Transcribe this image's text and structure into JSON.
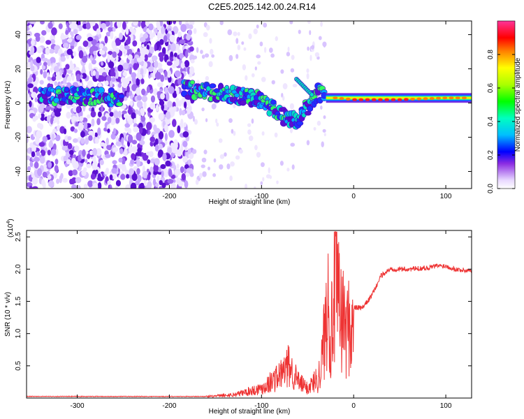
{
  "title": "C2E5.2025.142.00.24.R14",
  "chart_data": [
    {
      "type": "heatmap",
      "xlabel": "Height of straight line (km)",
      "ylabel": "Frequency (Hz)",
      "xlim": [
        -355,
        128
      ],
      "ylim": [
        -50,
        48
      ],
      "x_ticks": [
        -300,
        -200,
        -100,
        0,
        100
      ],
      "y_ticks": [
        -40,
        -20,
        0,
        20,
        40
      ],
      "colorbar": {
        "label": "Normalized spectral amplitude",
        "range": [
          0,
          1
        ],
        "ticks": [
          0.0,
          0.2,
          0.4,
          0.6,
          0.8
        ]
      },
      "ridge": [
        {
          "x": -320,
          "y": 4
        },
        {
          "x": -280,
          "y": 4
        },
        {
          "x": -250,
          "y": 3
        },
        {
          "x": -180,
          "y": 8
        },
        {
          "x": -150,
          "y": 6
        },
        {
          "x": -120,
          "y": 4
        },
        {
          "x": -100,
          "y": 2
        },
        {
          "x": -90,
          "y": -2
        },
        {
          "x": -80,
          "y": -6
        },
        {
          "x": -70,
          "y": -10
        },
        {
          "x": -60,
          "y": -10
        },
        {
          "x": -40,
          "y": 6
        },
        {
          "x": -20,
          "y": 3
        },
        {
          "x": 0,
          "y": 2
        },
        {
          "x": 50,
          "y": 2
        },
        {
          "x": 100,
          "y": 3
        },
        {
          "x": 128,
          "y": 3
        }
      ],
      "grid": false
    },
    {
      "type": "line",
      "xlabel": "Height of straight line (km)",
      "ylabel": "SNR (10 * v/v)",
      "multiplier": "(x10",
      "multiplier_exp": "4",
      "xlim": [
        -355,
        128
      ],
      "ylim": [
        0,
        2.6
      ],
      "x_ticks": [
        -300,
        -200,
        -100,
        0,
        100
      ],
      "y_ticks": [
        0.5,
        1.0,
        1.5,
        2.0,
        2.5
      ],
      "series": [
        {
          "color": "#ee3333",
          "x": [
            -355,
            -250,
            -160,
            -130,
            -100,
            -80,
            -70,
            -60,
            -50,
            -40,
            -35,
            -30,
            -28,
            -25,
            -22,
            -20,
            -15,
            -10,
            0,
            10,
            20,
            30,
            40,
            60,
            80,
            90,
            100,
            110,
            120,
            128
          ],
          "y": [
            0.02,
            0.02,
            0.02,
            0.05,
            0.15,
            0.35,
            0.5,
            0.25,
            0.15,
            0.3,
            0.7,
            1.6,
            2.5,
            1.2,
            1.8,
            2.3,
            1.8,
            1.5,
            1.4,
            1.4,
            1.6,
            1.9,
            2.0,
            2.0,
            2.02,
            2.05,
            2.05,
            2.0,
            1.98,
            1.98
          ]
        }
      ],
      "grid": false
    }
  ]
}
